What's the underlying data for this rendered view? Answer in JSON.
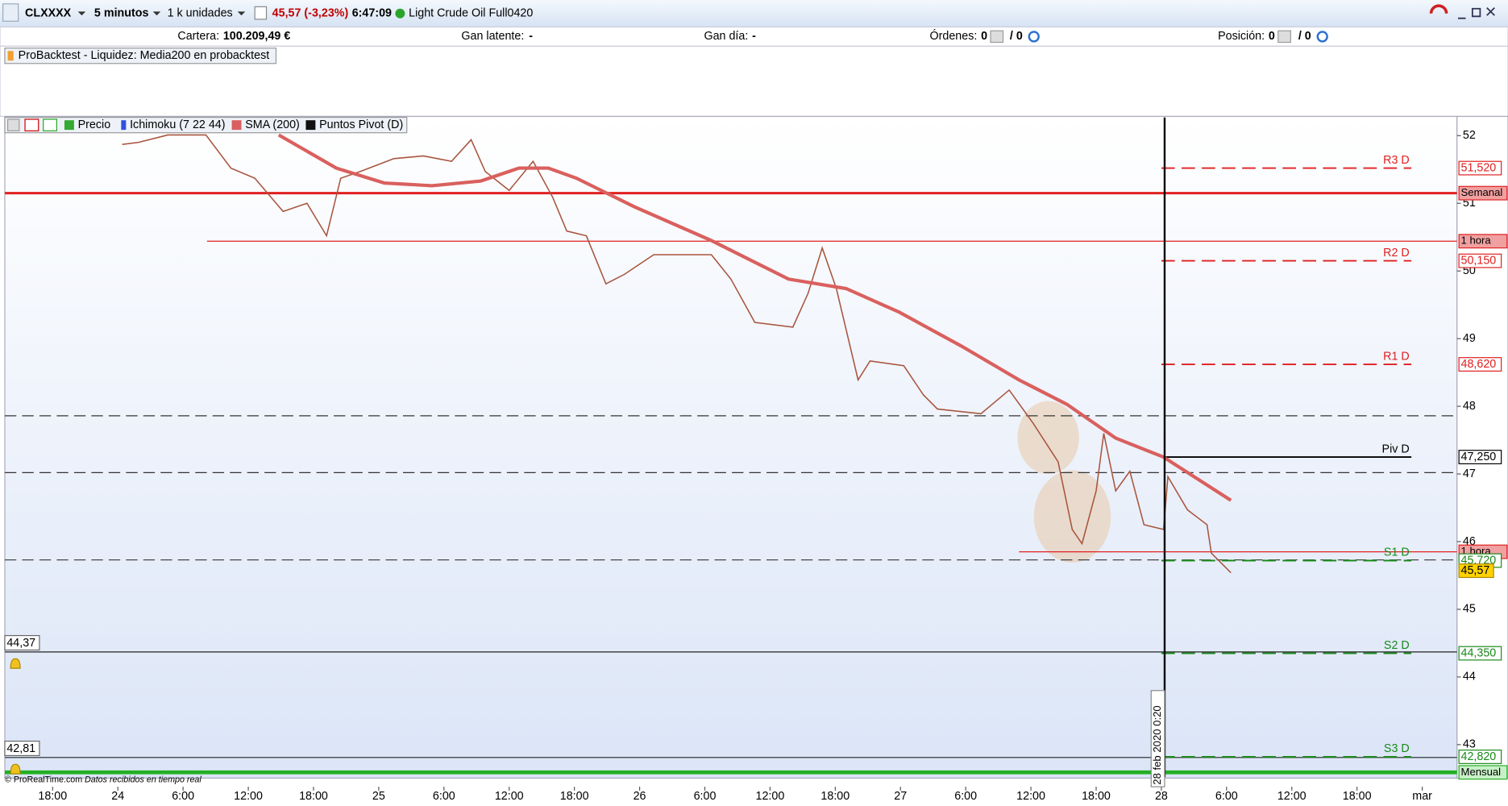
{
  "toolbar": {
    "symbol": "CLXXXX",
    "timeframe": "5 minutos",
    "quantity": "1 k unidades",
    "price_change": "45,57 (-3,23%)",
    "time": "6:47:09",
    "instrument": "Light Crude Oil Full0420"
  },
  "account": {
    "cartera_label": "Cartera:",
    "cartera": "100.209,49 €",
    "latente_label": "Gan latente:",
    "latente": "-",
    "dia_label": "Gan día:",
    "dia": "-",
    "ordenes_label": "Órdenes:",
    "ordenes": "0",
    "ordenes_total": "/ 0",
    "posicion_label": "Posición:",
    "posicion": "0",
    "posicion_total": "/ 0"
  },
  "panel": {
    "title": "ProBacktest - Liquidez: Media200 en probacktest"
  },
  "footer": {
    "copyright": "© ProRealTime.com",
    "status": "Datos recibidos en tiempo real"
  },
  "chart_data": {
    "type": "line",
    "ylim": [
      42.52,
      52.27
    ],
    "yticks": [
      52,
      51,
      50,
      49,
      48,
      47,
      46,
      45,
      44,
      43
    ],
    "xlim": [
      -10.4,
      123.2
    ],
    "xticks": [
      {
        "value": -6,
        "label": "18:00"
      },
      {
        "value": 0,
        "label": "24"
      },
      {
        "value": 6,
        "label": "6:00"
      },
      {
        "value": 12,
        "label": "12:00"
      },
      {
        "value": 18,
        "label": "18:00"
      },
      {
        "value": 24,
        "label": "25"
      },
      {
        "value": 30,
        "label": "6:00"
      },
      {
        "value": 36,
        "label": "12:00"
      },
      {
        "value": 42,
        "label": "18:00"
      },
      {
        "value": 48,
        "label": "26"
      },
      {
        "value": 54,
        "label": "6:00"
      },
      {
        "value": 60,
        "label": "12:00"
      },
      {
        "value": 66,
        "label": "18:00"
      },
      {
        "value": 72,
        "label": "27"
      },
      {
        "value": 78,
        "label": "6:00"
      },
      {
        "value": 84,
        "label": "12:00"
      },
      {
        "value": 90,
        "label": "18:00"
      },
      {
        "value": 96,
        "label": "28"
      },
      {
        "value": 102,
        "label": "6:00"
      },
      {
        "value": 108,
        "label": "12:00"
      },
      {
        "value": 114,
        "label": "18:00"
      },
      {
        "value": 120,
        "label": "mar"
      }
    ],
    "series": [
      {
        "name": "Precio",
        "color": "#a8553e",
        "x": [
          0.4,
          1.9,
          4.6,
          8.1,
          10.4,
          12.6,
          15.2,
          17.4,
          19.2,
          20.5,
          22.3,
          25.4,
          28.1,
          30.7,
          32.5,
          33.8,
          36.0,
          38.2,
          40.0,
          41.3,
          43.1,
          44.9,
          46.6,
          49.3,
          54.6,
          56.4,
          58.6,
          62.1,
          63.5,
          64.8,
          66.1,
          68.1,
          69.2,
          72.3,
          74.1,
          75.4,
          79.4,
          82.0,
          84.2,
          86.5,
          87.8,
          88.7,
          90.0,
          90.7,
          91.8,
          93.1,
          94.4,
          96.2,
          96.6,
          98.4,
          100.2,
          100.6,
          102.4
        ],
        "values": [
          51.87,
          51.9,
          52.01,
          52.01,
          51.52,
          51.37,
          50.88,
          51.0,
          50.52,
          51.37,
          51.47,
          51.66,
          51.7,
          51.62,
          51.94,
          51.47,
          51.19,
          51.62,
          51.09,
          50.59,
          50.52,
          49.81,
          49.95,
          50.24,
          50.24,
          49.88,
          49.24,
          49.17,
          49.67,
          50.34,
          49.74,
          48.39,
          48.67,
          48.6,
          48.17,
          47.96,
          47.89,
          48.24,
          47.75,
          47.18,
          46.18,
          45.97,
          46.75,
          47.6,
          46.75,
          47.04,
          46.25,
          46.18,
          46.96,
          46.47,
          46.25,
          45.83,
          45.54
        ]
      },
      {
        "name": "SMA (200)",
        "color": "#d9605e",
        "x": [
          14.8,
          20.1,
          24.5,
          28.9,
          33.4,
          36.9,
          39.6,
          42.2,
          47.5,
          54.6,
          61.7,
          67.0,
          71.9,
          77.6,
          82.9,
          87.3,
          91.8,
          96.2,
          102.4
        ],
        "values": [
          52.01,
          51.52,
          51.3,
          51.26,
          51.33,
          51.52,
          51.52,
          51.37,
          50.95,
          50.45,
          49.88,
          49.74,
          49.39,
          48.89,
          48.39,
          48.03,
          47.53,
          47.25,
          46.61
        ]
      }
    ],
    "indicators": [
      "Ichimoku (7 22 44)",
      "Puntos Pivot (D)"
    ],
    "pivots": {
      "names": [
        "R3 D",
        "R2 D",
        "R1 D",
        "Piv D",
        "S1 D",
        "S2 D",
        "S3 D"
      ],
      "values": [
        51.52,
        50.15,
        48.62,
        47.25,
        45.72,
        44.35,
        42.82
      ],
      "value_labels": [
        "51,520",
        "50,150",
        "48,620",
        "47,250",
        "45,720",
        "44,350",
        "42,820"
      ],
      "colors": [
        "#e02020",
        "#e02020",
        "#e02020",
        "#000000",
        "#1a8a1a",
        "#1a8a1a",
        "#1a8a1a"
      ],
      "x_range": [
        96,
        119
      ]
    },
    "hlines": {
      "labels": [
        "Semanal",
        "1 hora",
        "1 hora",
        "Mensual"
      ],
      "values": [
        51.15,
        50.44,
        45.85,
        42.59
      ],
      "x_starts": [
        -10.4,
        8.2,
        82.9,
        -10.4
      ],
      "colors": [
        "#e02020",
        "#e02020",
        "#e02020",
        "#22b022"
      ]
    },
    "dashed_levels": [
      47.86,
      47.02,
      45.73
    ],
    "alerts": {
      "values": [
        44.37,
        42.81
      ],
      "value_labels": [
        "44,37",
        "42,81"
      ]
    },
    "last_price": {
      "value": 45.57,
      "label": "45,57"
    },
    "cursor": {
      "x": 96.3,
      "label": "28 feb 2020 0:20"
    }
  }
}
